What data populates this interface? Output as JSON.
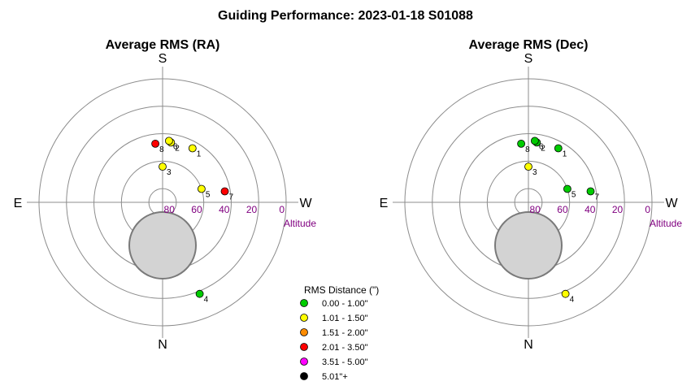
{
  "title": "Guiding Performance: 2023-01-18 S01088",
  "legend": {
    "title": "RMS Distance (\")",
    "items": [
      {
        "label": "0.00 - 1.00\"",
        "color": "#00cc00"
      },
      {
        "label": "1.01 - 1.50\"",
        "color": "#ffff00"
      },
      {
        "label": "1.51 - 2.00\"",
        "color": "#ff8c00"
      },
      {
        "label": "2.01 - 3.50\"",
        "color": "#ff0000"
      },
      {
        "label": "3.51 - 5.00\"",
        "color": "#ff00ff"
      },
      {
        "label": "5.01\"+",
        "color": "#000000"
      }
    ]
  },
  "chart_data": [
    {
      "type": "scatter",
      "subtype": "polar-sky",
      "title": "Average RMS (RA)",
      "compass": {
        "top": "S",
        "bottom": "N",
        "left": "E",
        "right": "W"
      },
      "altitude_label": "Altitude",
      "altitude_ticks": [
        "80",
        "60",
        "40",
        "20",
        "0"
      ],
      "points": [
        {
          "label": "1",
          "azimuth_deg": 331,
          "altitude_deg": 45,
          "color": "#ffff00"
        },
        {
          "label": "2",
          "azimuth_deg": 352,
          "altitude_deg": 46,
          "color": "#ffff00"
        },
        {
          "label": "3",
          "azimuth_deg": 0,
          "altitude_deg": 64,
          "color": "#ffff00"
        },
        {
          "label": "4",
          "azimuth_deg": 202,
          "altitude_deg": 18,
          "color": "#00cc00"
        },
        {
          "label": "5",
          "azimuth_deg": 289,
          "altitude_deg": 60,
          "color": "#ffff00"
        },
        {
          "label": "6",
          "azimuth_deg": 354,
          "altitude_deg": 45,
          "color": "#ffff00"
        },
        {
          "label": "7",
          "azimuth_deg": 280,
          "altitude_deg": 44,
          "color": "#ff0000"
        },
        {
          "label": "8",
          "azimuth_deg": 7,
          "altitude_deg": 47,
          "color": "#ff0000"
        }
      ]
    },
    {
      "type": "scatter",
      "subtype": "polar-sky",
      "title": "Average RMS (Dec)",
      "compass": {
        "top": "S",
        "bottom": "N",
        "left": "E",
        "right": "W"
      },
      "altitude_label": "Altitude",
      "altitude_ticks": [
        "80",
        "60",
        "40",
        "20",
        "0"
      ],
      "points": [
        {
          "label": "1",
          "azimuth_deg": 331,
          "altitude_deg": 45,
          "color": "#00cc00"
        },
        {
          "label": "2",
          "azimuth_deg": 352,
          "altitude_deg": 46,
          "color": "#00cc00"
        },
        {
          "label": "3",
          "azimuth_deg": 0,
          "altitude_deg": 64,
          "color": "#ffff00"
        },
        {
          "label": "4",
          "azimuth_deg": 202,
          "altitude_deg": 18,
          "color": "#ffff00"
        },
        {
          "label": "5",
          "azimuth_deg": 289,
          "altitude_deg": 60,
          "color": "#00cc00"
        },
        {
          "label": "6",
          "azimuth_deg": 354,
          "altitude_deg": 45,
          "color": "#00cc00"
        },
        {
          "label": "7",
          "azimuth_deg": 280,
          "altitude_deg": 44,
          "color": "#00cc00"
        },
        {
          "label": "8",
          "azimuth_deg": 7,
          "altitude_deg": 47,
          "color": "#00cc00"
        }
      ]
    }
  ]
}
